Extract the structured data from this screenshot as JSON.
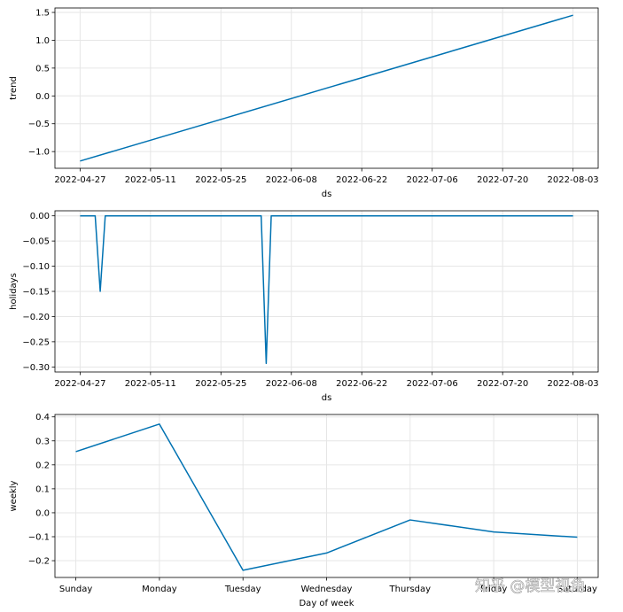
{
  "chart_data": [
    {
      "type": "line",
      "xlabel": "ds",
      "ylabel": "trend",
      "x_tick_labels": [
        "2022-04-27",
        "2022-05-11",
        "2022-05-25",
        "2022-06-08",
        "2022-06-22",
        "2022-07-06",
        "2022-07-20",
        "2022-08-03"
      ],
      "y_tick_labels": [
        "1.5",
        "1.0",
        "0.5",
        "0.0",
        "−0.5",
        "−1.0"
      ],
      "y_ticks": [
        1.5,
        1.0,
        0.5,
        0.0,
        -0.5,
        -1.0
      ],
      "xlim": [
        "2022-04-22",
        "2022-08-08"
      ],
      "ylim": [
        -1.3,
        1.58
      ],
      "grid": true,
      "color": "#0072b2",
      "series": [
        {
          "x": [
            "2022-04-27",
            "2022-08-03"
          ],
          "y": [
            -1.17,
            1.45
          ]
        }
      ]
    },
    {
      "type": "line",
      "xlabel": "ds",
      "ylabel": "holidays",
      "x_tick_labels": [
        "2022-04-27",
        "2022-05-11",
        "2022-05-25",
        "2022-06-08",
        "2022-06-22",
        "2022-07-06",
        "2022-07-20",
        "2022-08-03"
      ],
      "y_tick_labels": [
        "0.00",
        "−0.05",
        "−0.10",
        "−0.15",
        "−0.20",
        "−0.25",
        "−0.30"
      ],
      "y_ticks": [
        0.0,
        -0.05,
        -0.1,
        -0.15,
        -0.2,
        -0.25,
        -0.3
      ],
      "xlim": [
        "2022-04-22",
        "2022-08-08"
      ],
      "ylim": [
        -0.31,
        0.01
      ],
      "grid": true,
      "color": "#0072b2",
      "series": [
        {
          "x": [
            "2022-04-27",
            "2022-04-30",
            "2022-05-01",
            "2022-05-02",
            "2022-06-02",
            "2022-06-03",
            "2022-06-04",
            "2022-08-03"
          ],
          "y": [
            0,
            0,
            -0.15,
            0,
            0,
            -0.293,
            0,
            0
          ]
        }
      ]
    },
    {
      "type": "line",
      "xlabel": "Day of week",
      "ylabel": "weekly",
      "categories": [
        "Sunday",
        "Monday",
        "Tuesday",
        "Wednesday",
        "Thursday",
        "Friday",
        "Saturday"
      ],
      "y_tick_labels": [
        "0.4",
        "0.3",
        "0.2",
        "0.1",
        "0.0",
        "−0.1",
        "−0.2"
      ],
      "y_ticks": [
        0.4,
        0.3,
        0.2,
        0.1,
        0.0,
        -0.1,
        -0.2
      ],
      "xlim": [
        -0.25,
        6.25
      ],
      "ylim": [
        -0.27,
        0.41
      ],
      "grid": true,
      "color": "#0072b2",
      "series": [
        {
          "y": [
            0.255,
            0.37,
            -0.24,
            -0.168,
            -0.03,
            -0.08,
            -0.102
          ]
        }
      ]
    }
  ],
  "watermark": "知乎 @模型视角"
}
